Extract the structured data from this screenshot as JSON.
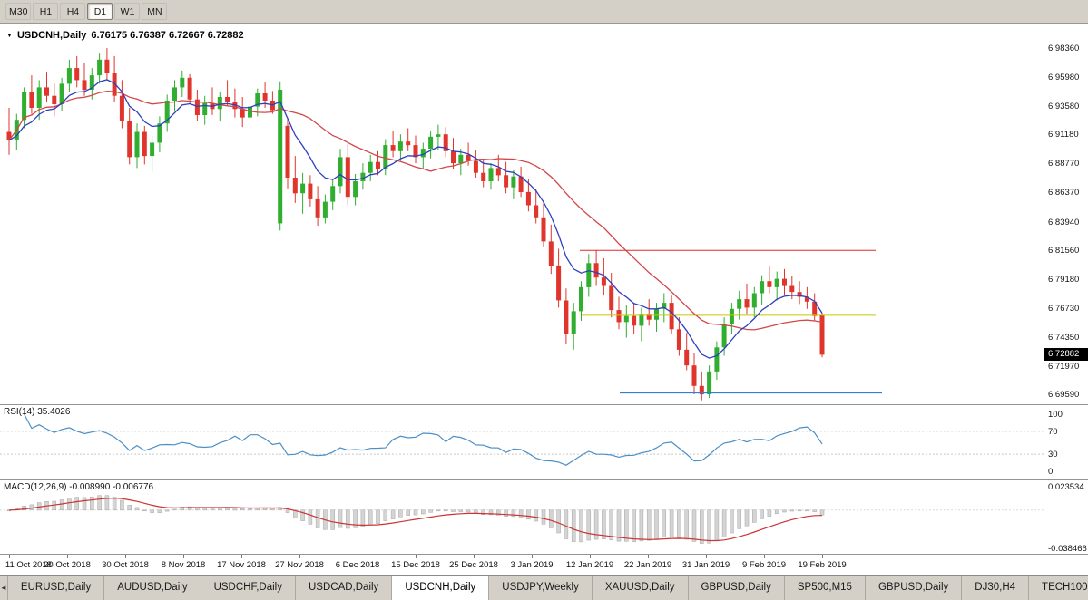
{
  "toolbar": {
    "periods": [
      "M30",
      "H1",
      "H4",
      "D1",
      "W1",
      "MN"
    ],
    "active_index": 3
  },
  "chart": {
    "title_symbol": "USDCNH,Daily",
    "title_ohlc": "6.76175 6.76387 6.72667 6.72882",
    "symbol_marker": "▼"
  },
  "indicators": {
    "rsi": {
      "label": "RSI(14) 35.4026",
      "period": 14,
      "value": 35.4026,
      "axis_labels": [
        "100",
        "70",
        "30",
        "0"
      ],
      "levels": [
        70,
        30
      ],
      "color": "#4a8fc7"
    },
    "macd": {
      "label": "MACD(12,26,9) -0.008990 -0.006776",
      "fast": 12,
      "slow": 26,
      "signal": 9,
      "values": [
        -0.00899,
        -0.006776
      ],
      "axis_labels": [
        "0.023534",
        "-0.038466"
      ],
      "range": [
        0.023534,
        -0.038466
      ],
      "bar_color": "#d4d4d4",
      "bar_stroke": "#a6a6a6",
      "signal_color": "#cc3333"
    }
  },
  "tabs": {
    "scroll_left": "◄",
    "active_index": 4,
    "items": [
      "EURUSD,Daily",
      "AUDUSD,Daily",
      "USDCHF,Daily",
      "USDCAD,Daily",
      "USDCNH,Daily",
      "USDJPY,Weekly",
      "XAUUSD,Daily",
      "GBPUSD,Daily",
      "SP500,M15",
      "GBPUSD,Daily",
      "DJ30,H4",
      "TECH100"
    ]
  },
  "chart_data": {
    "type": "candlestick",
    "symbol": "USDCNH",
    "timeframe": "Daily",
    "current": {
      "open": 6.76175,
      "high": 6.76387,
      "low": 6.72667,
      "close": 6.72882
    },
    "price_range": [
      6.687,
      7.004
    ],
    "y_axis_labels": [
      "6.98360",
      "6.95980",
      "6.93580",
      "6.91180",
      "6.88770",
      "6.86370",
      "6.83940",
      "6.81560",
      "6.79180",
      "6.76730",
      "6.74350",
      "6.71970",
      "6.69590"
    ],
    "x_labels": [
      "11 Oct 2018",
      "20 Oct 2018",
      "30 Oct 2018",
      "8 Nov 2018",
      "17 Nov 2018",
      "27 Nov 2018",
      "6 Dec 2018",
      "15 Dec 2018",
      "25 Dec 2018",
      "3 Jan 2019",
      "12 Jan 2019",
      "22 Jan 2019",
      "31 Jan 2019",
      "9 Feb 2019",
      "19 Feb 2019"
    ],
    "colors": {
      "up": "#2fae2f",
      "down": "#df352c",
      "background": "#ffffff"
    },
    "price_marker": {
      "value": "6.72882",
      "price": 6.72882
    },
    "overlays": {
      "ma_fast": {
        "type": "EMA",
        "period": 8,
        "color": "#2e3fbf"
      },
      "ma_slow": {
        "type": "SMA",
        "period": 20,
        "color": "#d24747"
      },
      "hlines": [
        {
          "price": 6.8156,
          "color": "#e02a2a",
          "width": 1,
          "x0": 0.5557,
          "x1": 0.8391
        },
        {
          "price": 6.762,
          "color": "#c8c800",
          "width": 2,
          "x0": 0.5574,
          "x1": 0.8391
        },
        {
          "price": 6.6975,
          "color": "#2f7ed8",
          "width": 2,
          "x0": 0.5939,
          "x1": 0.8452
        }
      ]
    },
    "candles": [
      [
        6.914,
        6.934,
        6.895,
        6.907
      ],
      [
        6.907,
        6.929,
        6.899,
        6.924
      ],
      [
        6.924,
        6.951,
        6.917,
        6.947
      ],
      [
        6.947,
        6.961,
        6.929,
        6.934
      ],
      [
        6.934,
        6.957,
        6.924,
        6.951
      ],
      [
        6.951,
        6.964,
        6.939,
        6.944
      ],
      [
        6.944,
        6.954,
        6.927,
        6.937
      ],
      [
        6.937,
        6.959,
        6.931,
        6.954
      ],
      [
        6.954,
        6.974,
        6.947,
        6.967
      ],
      [
        6.967,
        6.977,
        6.951,
        6.957
      ],
      [
        6.957,
        6.971,
        6.944,
        6.949
      ],
      [
        6.949,
        6.967,
        6.941,
        6.961
      ],
      [
        6.961,
        6.979,
        6.954,
        6.974
      ],
      [
        6.974,
        6.9836,
        6.957,
        6.963
      ],
      [
        6.963,
        6.977,
        6.939,
        6.944
      ],
      [
        6.944,
        6.957,
        6.917,
        6.923
      ],
      [
        6.923,
        6.934,
        6.887,
        6.893
      ],
      [
        6.893,
        6.921,
        6.884,
        6.914
      ],
      [
        6.914,
        6.919,
        6.887,
        6.894
      ],
      [
        6.894,
        6.911,
        6.881,
        6.905
      ],
      [
        6.905,
        6.927,
        6.897,
        6.921
      ],
      [
        6.921,
        6.945,
        6.914,
        6.94
      ],
      [
        6.94,
        6.957,
        6.931,
        6.951
      ],
      [
        6.951,
        6.965,
        6.943,
        6.959
      ],
      [
        6.959,
        6.962,
        6.937,
        6.941
      ],
      [
        6.941,
        6.949,
        6.923,
        6.928
      ],
      [
        6.928,
        6.944,
        6.92,
        6.938
      ],
      [
        6.938,
        6.951,
        6.928,
        6.933
      ],
      [
        6.933,
        6.947,
        6.923,
        6.943
      ],
      [
        6.943,
        6.957,
        6.936,
        6.939
      ],
      [
        6.939,
        6.95,
        6.926,
        6.933
      ],
      [
        6.933,
        6.943,
        6.918,
        6.926
      ],
      [
        6.926,
        6.94,
        6.916,
        6.935
      ],
      [
        6.935,
        6.95,
        6.927,
        6.946
      ],
      [
        6.946,
        6.955,
        6.934,
        6.94
      ],
      [
        6.94,
        6.948,
        6.929,
        6.932
      ],
      [
        6.838,
        6.956,
        6.832,
        6.949
      ],
      [
        6.919,
        6.925,
        6.867,
        6.876
      ],
      [
        6.876,
        6.894,
        6.855,
        6.863
      ],
      [
        6.863,
        6.88,
        6.846,
        6.871
      ],
      [
        6.871,
        6.878,
        6.852,
        6.858
      ],
      [
        6.858,
        6.869,
        6.836,
        6.843
      ],
      [
        6.843,
        6.862,
        6.838,
        6.856
      ],
      [
        6.856,
        6.875,
        6.849,
        6.869
      ],
      [
        6.869,
        6.9,
        6.863,
        6.893
      ],
      [
        6.893,
        6.904,
        6.853,
        6.86
      ],
      [
        6.86,
        6.879,
        6.853,
        6.873
      ],
      [
        6.873,
        6.888,
        6.866,
        6.88
      ],
      [
        6.88,
        6.895,
        6.873,
        6.889
      ],
      [
        6.889,
        6.898,
        6.878,
        6.883
      ],
      [
        6.883,
        6.908,
        6.878,
        6.903
      ],
      [
        6.903,
        6.915,
        6.893,
        6.898
      ],
      [
        6.898,
        6.912,
        6.89,
        6.906
      ],
      [
        6.906,
        6.917,
        6.898,
        6.903
      ],
      [
        6.903,
        6.911,
        6.888,
        6.893
      ],
      [
        6.893,
        6.905,
        6.883,
        6.9
      ],
      [
        6.9,
        6.915,
        6.892,
        6.91
      ],
      [
        6.91,
        6.92,
        6.899,
        6.912
      ],
      [
        6.912,
        6.918,
        6.893,
        6.898
      ],
      [
        6.898,
        6.909,
        6.883,
        6.888
      ],
      [
        6.888,
        6.9,
        6.878,
        6.895
      ],
      [
        6.895,
        6.905,
        6.886,
        6.89
      ],
      [
        6.89,
        6.899,
        6.876,
        6.88
      ],
      [
        6.88,
        6.891,
        6.868,
        6.873
      ],
      [
        6.873,
        6.888,
        6.866,
        6.884
      ],
      [
        6.884,
        6.895,
        6.873,
        6.878
      ],
      [
        6.878,
        6.889,
        6.863,
        6.868
      ],
      [
        6.868,
        6.882,
        6.858,
        6.877
      ],
      [
        6.877,
        6.885,
        6.86,
        6.864
      ],
      [
        6.864,
        6.875,
        6.848,
        6.853
      ],
      [
        6.853,
        6.867,
        6.838,
        6.843
      ],
      [
        6.843,
        6.857,
        6.818,
        6.823
      ],
      [
        6.823,
        6.837,
        6.796,
        6.803
      ],
      [
        6.803,
        6.817,
        6.768,
        6.774
      ],
      [
        6.774,
        6.784,
        6.738,
        6.746
      ],
      [
        6.746,
        6.772,
        6.733,
        6.765
      ],
      [
        6.765,
        6.79,
        6.757,
        6.785
      ],
      [
        6.785,
        6.8125,
        6.777,
        6.805
      ],
      [
        6.805,
        6.8158,
        6.786,
        6.793
      ],
      [
        6.793,
        6.809,
        6.778,
        6.786
      ],
      [
        6.786,
        6.797,
        6.76,
        6.766
      ],
      [
        6.766,
        6.777,
        6.75,
        6.756
      ],
      [
        6.756,
        6.77,
        6.743,
        6.761
      ],
      [
        6.761,
        6.772,
        6.746,
        6.753
      ],
      [
        6.753,
        6.768,
        6.74,
        6.763
      ],
      [
        6.763,
        6.775,
        6.753,
        6.758
      ],
      [
        6.758,
        6.772,
        6.748,
        6.767
      ],
      [
        6.767,
        6.78,
        6.756,
        6.772
      ],
      [
        6.772,
        6.778,
        6.746,
        6.75
      ],
      [
        6.75,
        6.76,
        6.728,
        6.733
      ],
      [
        6.733,
        6.747,
        6.716,
        6.72
      ],
      [
        6.72,
        6.73,
        6.696,
        6.703
      ],
      [
        6.703,
        6.715,
        6.691,
        6.696
      ],
      [
        6.696,
        6.72,
        6.693,
        6.715
      ],
      [
        6.715,
        6.74,
        6.708,
        6.735
      ],
      [
        6.735,
        6.76,
        6.728,
        6.754
      ],
      [
        6.754,
        6.772,
        6.746,
        6.767
      ],
      [
        6.767,
        6.782,
        6.758,
        6.775
      ],
      [
        6.775,
        6.788,
        6.763,
        6.768
      ],
      [
        6.768,
        6.785,
        6.76,
        6.78
      ],
      [
        6.78,
        6.795,
        6.77,
        6.79
      ],
      [
        6.79,
        6.802,
        6.78,
        6.785
      ],
      [
        6.785,
        6.798,
        6.774,
        6.792
      ],
      [
        6.792,
        6.8,
        6.778,
        6.786
      ],
      [
        6.786,
        6.794,
        6.775,
        6.781
      ],
      [
        6.781,
        6.79,
        6.771,
        6.777
      ],
      [
        6.777,
        6.785,
        6.767,
        6.773
      ],
      [
        6.773,
        6.78,
        6.757,
        6.761
      ],
      [
        6.76175,
        6.76387,
        6.72667,
        6.72882
      ]
    ]
  }
}
